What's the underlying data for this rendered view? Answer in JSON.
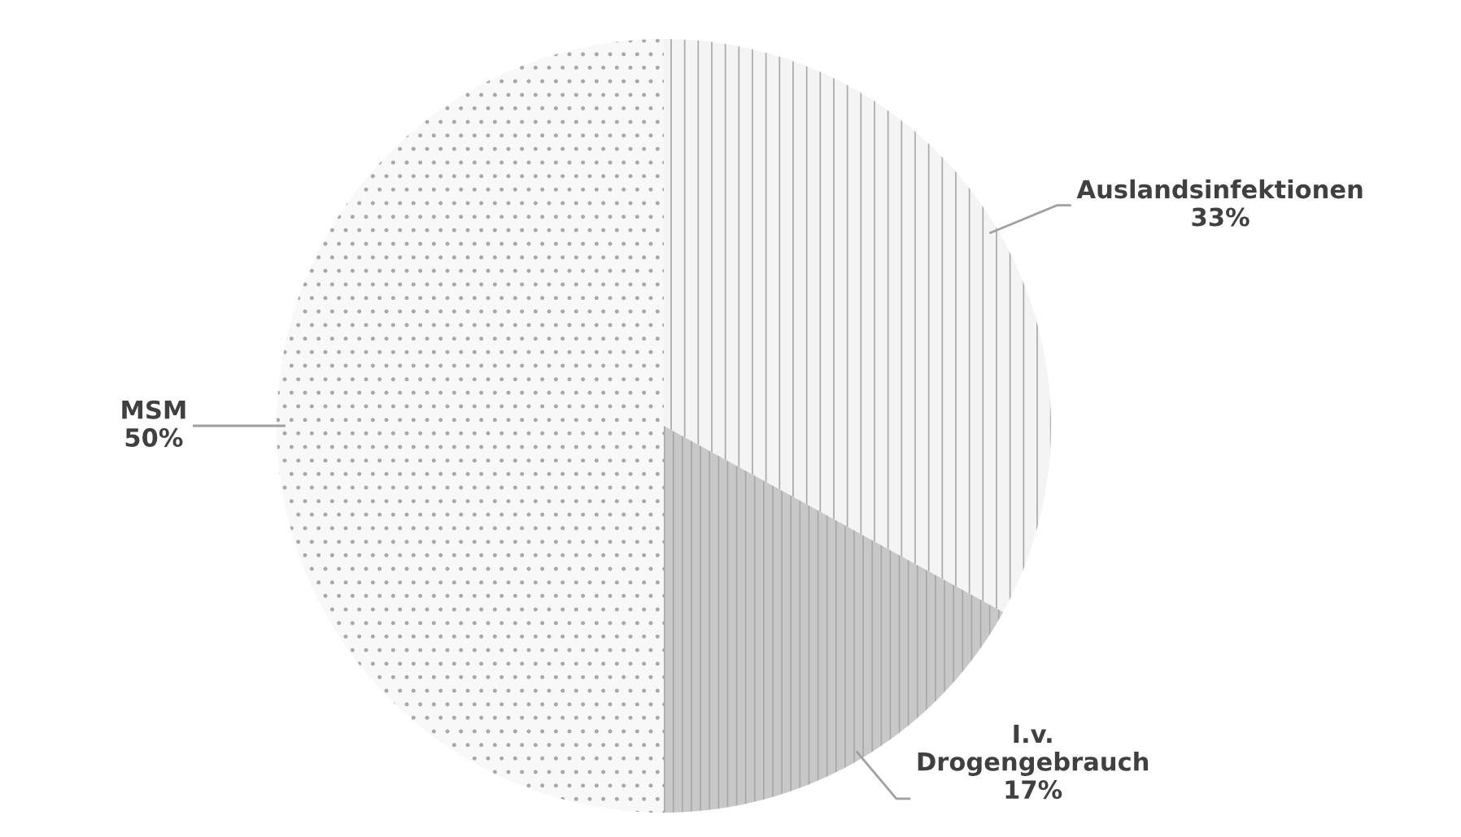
{
  "chart_data": {
    "type": "pie",
    "categories": [
      "Auslandsinfektionen",
      "I.v.\nDrogengebrauch",
      "MSM"
    ],
    "values": [
      33,
      17,
      50
    ],
    "colors": [
      "#f4f4f4",
      "#c8c8c8",
      "#f8f8f8"
    ],
    "value_labels": [
      "33%",
      "17%",
      "50%"
    ],
    "legend": false
  }
}
